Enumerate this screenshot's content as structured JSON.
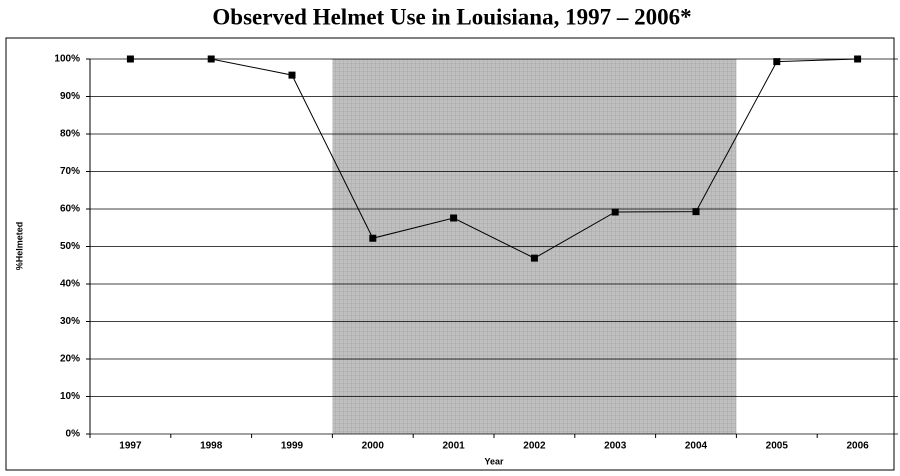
{
  "chart_data": {
    "type": "line",
    "title": "Observed Helmet Use in Louisiana, 1997 – 2006*",
    "x_label": "Year",
    "y_label": "%Helmeted",
    "categories": [
      "1997",
      "1998",
      "1999",
      "2000",
      "2001",
      "2002",
      "2003",
      "2004",
      "2005",
      "2006"
    ],
    "values": [
      100,
      100,
      95.7,
      52.2,
      57.6,
      46.9,
      59.2,
      59.3,
      99.3,
      100
    ],
    "color": "#000000",
    "shaded_categories": [
      "2000",
      "2004"
    ],
    "shade_color": "#c0c0c0",
    "ylim": [
      0,
      100
    ],
    "yticks": [
      {
        "value": 0,
        "label": "0%"
      },
      {
        "value": 10,
        "label": "10%"
      },
      {
        "value": 20,
        "label": "20%"
      },
      {
        "value": 30,
        "label": "30%"
      },
      {
        "value": 40,
        "label": "40%"
      },
      {
        "value": 50,
        "label": "50%"
      },
      {
        "value": 60,
        "label": "60%"
      },
      {
        "value": 70,
        "label": "70%"
      },
      {
        "value": 80,
        "label": "80%"
      },
      {
        "value": 90,
        "label": "90%"
      },
      {
        "value": 100,
        "label": "100%"
      }
    ],
    "grid": true
  }
}
